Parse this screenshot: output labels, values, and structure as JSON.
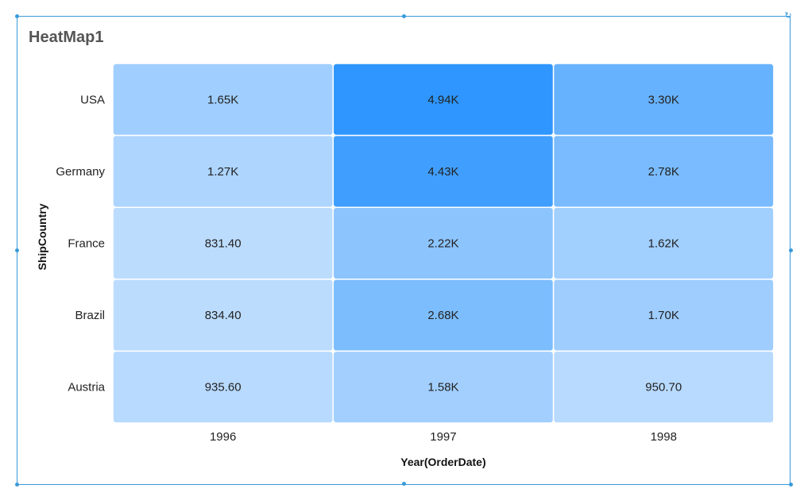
{
  "title": "HeatMap1",
  "chart_data": {
    "type": "heatmap",
    "title": "HeatMap1",
    "xlabel": "Year(OrderDate)",
    "ylabel": "ShipCountry",
    "x_categories": [
      "1996",
      "1997",
      "1998"
    ],
    "y_categories": [
      "USA",
      "Germany",
      "France",
      "Brazil",
      "Austria"
    ],
    "values": [
      [
        1650,
        4940,
        3300
      ],
      [
        1270,
        4430,
        2780
      ],
      [
        831.4,
        2220,
        1620
      ],
      [
        834.4,
        2680,
        1700
      ],
      [
        935.6,
        1580,
        950.7
      ]
    ],
    "labels": [
      [
        "1.65K",
        "4.94K",
        "3.30K"
      ],
      [
        "1.27K",
        "4.43K",
        "2.78K"
      ],
      [
        "831.40",
        "2.22K",
        "1.62K"
      ],
      [
        "834.40",
        "2.68K",
        "1.70K"
      ],
      [
        "935.60",
        "1.58K",
        "950.70"
      ]
    ],
    "color_scale": {
      "low": "#bcdcfe",
      "high": "#2e96fe"
    },
    "legend": "none"
  }
}
